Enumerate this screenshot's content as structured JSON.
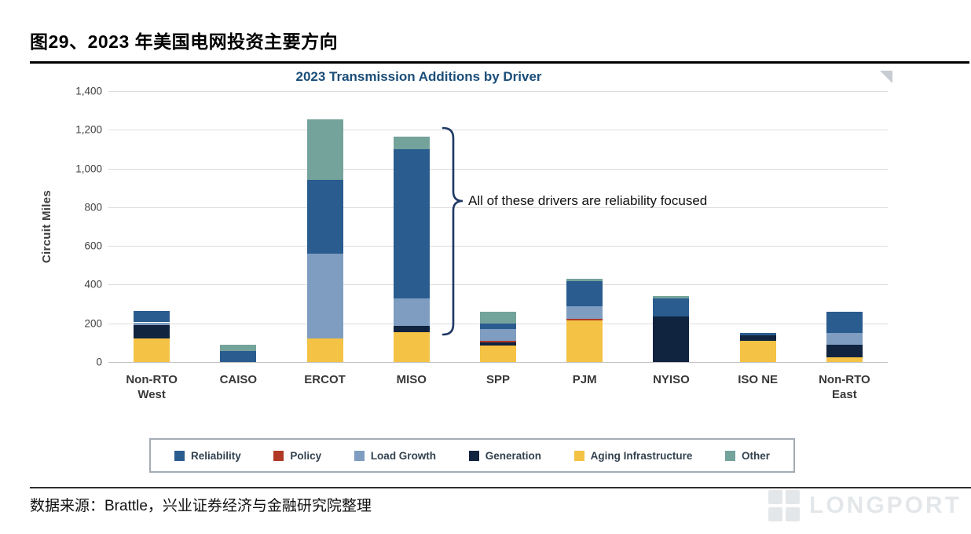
{
  "page": {
    "figure_title": "图29、2023 年美国电网投资主要方向",
    "source_note": "数据来源：Brattle，兴业证券经济与金融研究院整理",
    "watermark": "LONGPORT"
  },
  "chart_data": {
    "type": "bar",
    "stacked": true,
    "title": "2023 Transmission Additions by Driver",
    "title_color": "#1B4E79",
    "ylabel": "Circuit Miles",
    "xlabel": "",
    "ylim": [
      0,
      1400
    ],
    "ytick_interval": 200,
    "ytick_labels": [
      "0",
      "200",
      "400",
      "600",
      "800",
      "1,000",
      "1,200",
      "1,400"
    ],
    "grid": "horizontal",
    "legend_position": "bottom",
    "annotation": "All of these drivers are reliability focused",
    "categories": [
      "Non-RTO West",
      "CAISO",
      "ERCOT",
      "MISO",
      "SPP",
      "PJM",
      "NYISO",
      "ISO NE",
      "Non-RTO East"
    ],
    "stack_order_bottom_to_top": [
      "Aging Infrastructure",
      "Generation",
      "Policy",
      "Load Growth",
      "Reliability",
      "Other"
    ],
    "series": [
      {
        "name": "Reliability",
        "color": "#2A5C8F",
        "values": [
          60,
          55,
          380,
          770,
          30,
          130,
          95,
          10,
          110
        ]
      },
      {
        "name": "Policy",
        "color": "#B03A26",
        "values": [
          0,
          0,
          0,
          0,
          10,
          10,
          0,
          0,
          0
        ]
      },
      {
        "name": "Load Growth",
        "color": "#7F9DC0",
        "values": [
          15,
          0,
          440,
          145,
          60,
          65,
          0,
          0,
          60
        ]
      },
      {
        "name": "Generation",
        "color": "#102440",
        "values": [
          70,
          0,
          0,
          30,
          15,
          0,
          235,
          30,
          65
        ]
      },
      {
        "name": "Aging Infrastructure",
        "color": "#F4C244",
        "values": [
          120,
          0,
          120,
          155,
          85,
          215,
          0,
          110,
          25
        ]
      },
      {
        "name": "Other",
        "color": "#74A39B",
        "values": [
          0,
          35,
          315,
          65,
          60,
          10,
          10,
          0,
          0
        ]
      }
    ]
  }
}
